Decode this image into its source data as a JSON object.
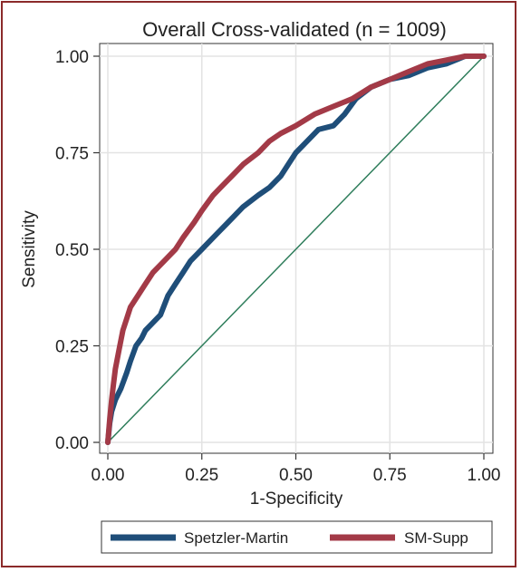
{
  "chart_data": {
    "type": "line",
    "title": "Overall Cross-validated (n = 1009)",
    "xlabel": "1-Specificity",
    "ylabel": "Sensitivity",
    "xlim": [
      0,
      1
    ],
    "ylim": [
      0,
      1
    ],
    "xticks": [
      "0.00",
      "0.25",
      "0.50",
      "0.75",
      "1.00"
    ],
    "yticks": [
      "0.00",
      "0.25",
      "0.50",
      "0.75",
      "1.00"
    ],
    "grid": true,
    "legend_position": "bottom",
    "reference_line": {
      "color": "#2e7d5b",
      "from": [
        0,
        0
      ],
      "to": [
        1,
        1
      ]
    },
    "series": [
      {
        "name": "Spetzler-Martin",
        "color": "#1f4e79",
        "x": [
          0,
          0.005,
          0.01,
          0.02,
          0.035,
          0.05,
          0.06,
          0.075,
          0.09,
          0.1,
          0.12,
          0.14,
          0.16,
          0.18,
          0.2,
          0.22,
          0.25,
          0.28,
          0.3,
          0.33,
          0.36,
          0.4,
          0.43,
          0.46,
          0.48,
          0.5,
          0.53,
          0.56,
          0.6,
          0.63,
          0.66,
          0.7,
          0.75,
          0.8,
          0.85,
          0.9,
          0.95,
          1.0
        ],
        "y": [
          0,
          0.05,
          0.08,
          0.11,
          0.14,
          0.18,
          0.21,
          0.25,
          0.27,
          0.29,
          0.31,
          0.33,
          0.38,
          0.41,
          0.44,
          0.47,
          0.5,
          0.53,
          0.55,
          0.58,
          0.61,
          0.64,
          0.66,
          0.69,
          0.72,
          0.75,
          0.78,
          0.81,
          0.82,
          0.85,
          0.89,
          0.92,
          0.94,
          0.95,
          0.97,
          0.98,
          1.0,
          1.0
        ]
      },
      {
        "name": "SM-Supp",
        "color": "#a33a47",
        "x": [
          0,
          0.005,
          0.01,
          0.015,
          0.02,
          0.03,
          0.04,
          0.05,
          0.06,
          0.08,
          0.1,
          0.12,
          0.15,
          0.18,
          0.2,
          0.23,
          0.25,
          0.28,
          0.3,
          0.33,
          0.36,
          0.4,
          0.43,
          0.46,
          0.5,
          0.55,
          0.6,
          0.65,
          0.7,
          0.75,
          0.8,
          0.85,
          0.9,
          0.95,
          1.0
        ],
        "y": [
          0,
          0.06,
          0.11,
          0.15,
          0.19,
          0.24,
          0.29,
          0.32,
          0.35,
          0.38,
          0.41,
          0.44,
          0.47,
          0.5,
          0.53,
          0.57,
          0.6,
          0.64,
          0.66,
          0.69,
          0.72,
          0.75,
          0.78,
          0.8,
          0.82,
          0.85,
          0.87,
          0.89,
          0.92,
          0.94,
          0.96,
          0.98,
          0.99,
          1.0,
          1.0
        ]
      }
    ]
  }
}
